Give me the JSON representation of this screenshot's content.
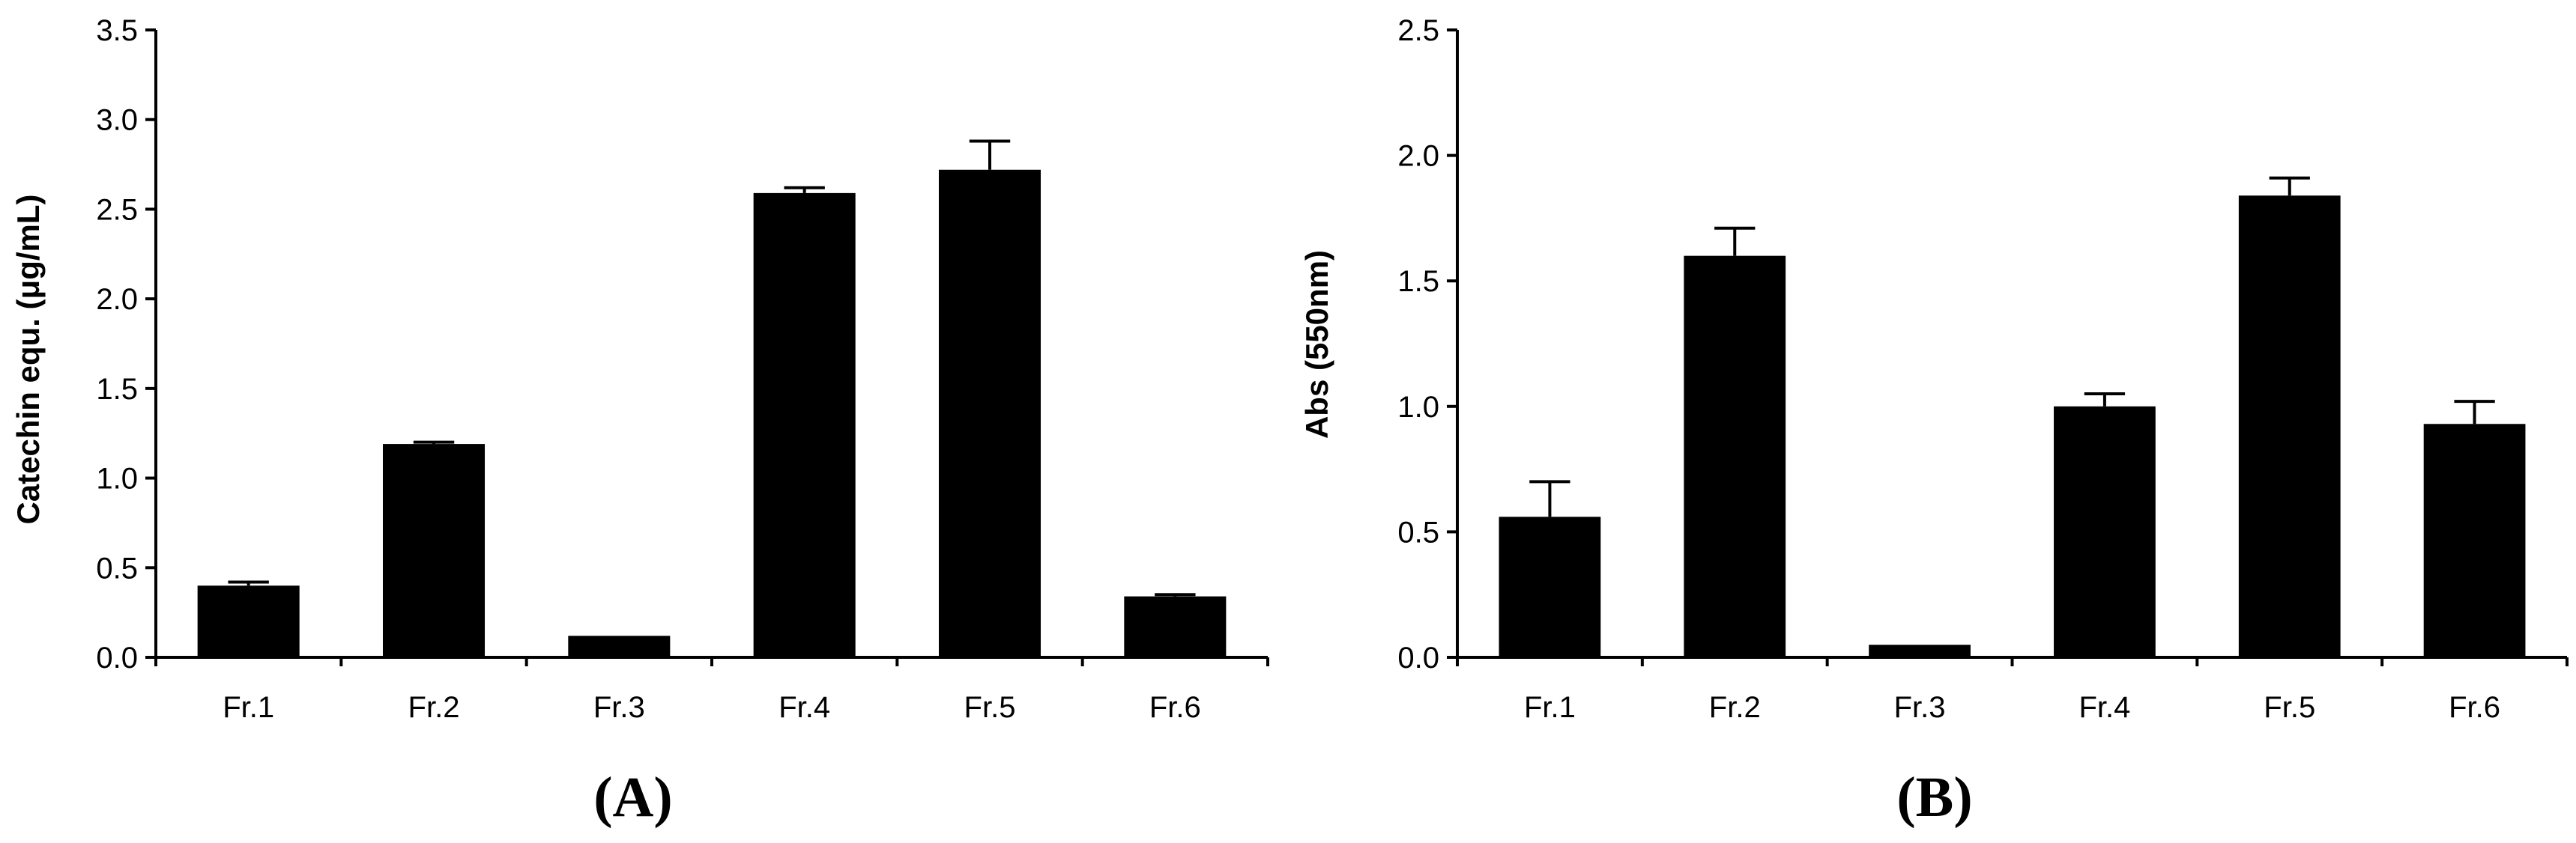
{
  "chart_data": [
    {
      "type": "bar",
      "panel_label": "(A)",
      "ylabel": "Catechin equ. (μg/mL)",
      "xlabel": "",
      "categories": [
        "Fr.1",
        "Fr.2",
        "Fr.3",
        "Fr.4",
        "Fr.5",
        "Fr.6"
      ],
      "values": [
        0.4,
        1.19,
        0.12,
        2.59,
        2.72,
        0.34
      ],
      "errors": [
        0.02,
        0.01,
        0.0,
        0.03,
        0.16,
        0.01
      ],
      "ylim": [
        0,
        3.5
      ],
      "yticks": [
        "0.0",
        "0.5",
        "1.0",
        "1.5",
        "2.0",
        "2.5",
        "3.0",
        "3.5"
      ],
      "grid": false,
      "bar_color": "#000000"
    },
    {
      "type": "bar",
      "panel_label": "(B)",
      "ylabel": "Abs (550nm)",
      "xlabel": "",
      "categories": [
        "Fr.1",
        "Fr.2",
        "Fr.3",
        "Fr.4",
        "Fr.5",
        "Fr.6"
      ],
      "values": [
        0.56,
        1.6,
        0.05,
        1.0,
        1.84,
        0.93
      ],
      "errors": [
        0.14,
        0.11,
        0.0,
        0.05,
        0.07,
        0.09
      ],
      "ylim": [
        0,
        2.5
      ],
      "yticks": [
        "0.0",
        "0.5",
        "1.0",
        "1.5",
        "2.0",
        "2.5"
      ],
      "grid": false,
      "bar_color": "#000000"
    }
  ]
}
